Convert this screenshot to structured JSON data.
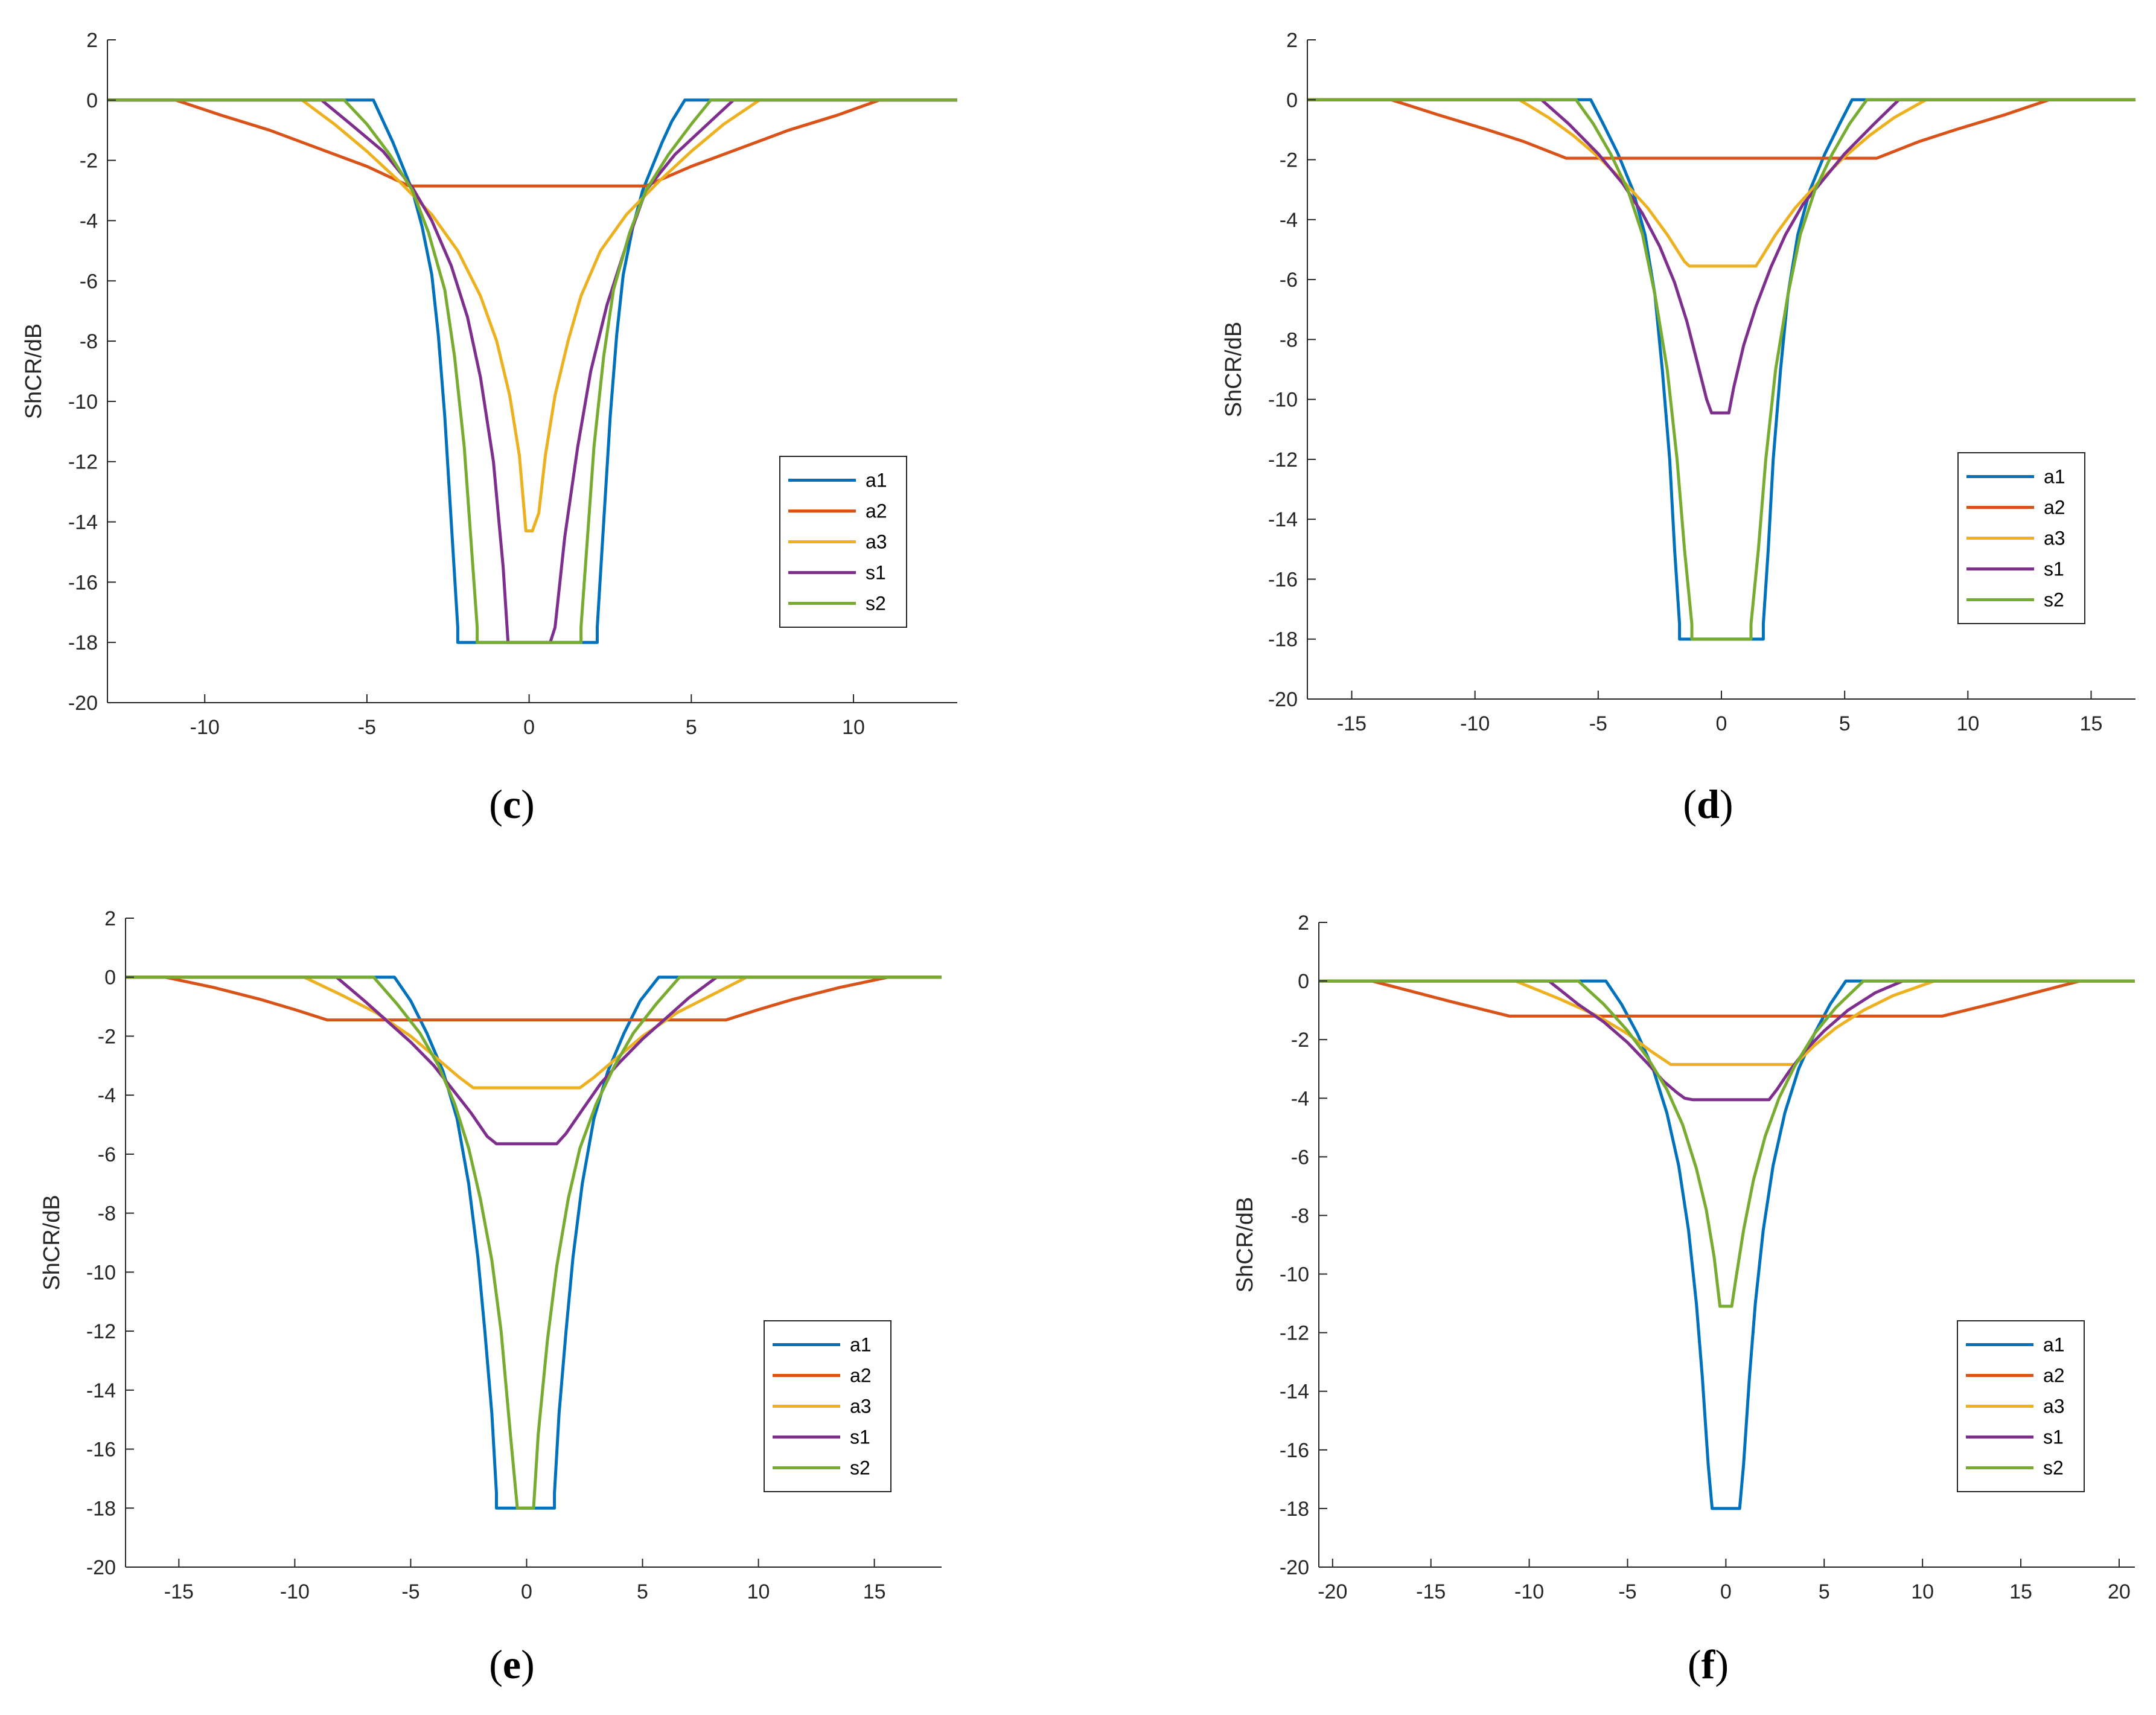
{
  "colors": {
    "a1": "#0072BD",
    "a2": "#D95319",
    "a3": "#EDB120",
    "s1": "#7E2F8E",
    "s2": "#77AC30",
    "axis": "#262626"
  },
  "chart_data": [
    {
      "id": "c",
      "type": "line",
      "caption_open": "(",
      "caption_letter": "c",
      "caption_close": ")",
      "ylabel": "ShCR/dB",
      "xlabel": "",
      "xlim": [
        -13,
        13.2
      ],
      "ylim": [
        -20,
        2
      ],
      "xticks": [
        -10,
        -5,
        0,
        5,
        10
      ],
      "yticks": [
        2,
        0,
        -2,
        -4,
        -6,
        -8,
        -10,
        -12,
        -14,
        -16,
        -18,
        -20
      ],
      "legend": [
        "a1",
        "a2",
        "a3",
        "s1",
        "s2"
      ],
      "legend_position": "lower-right",
      "series": [
        {
          "name": "a1",
          "x": [
            -13,
            -4.8,
            -4.5,
            -4.2,
            -3.9,
            -3.6,
            -3.3,
            -3.0,
            -2.8,
            -2.6,
            -2.4,
            -2.2,
            -2.2,
            2.1,
            2.1,
            2.3,
            2.5,
            2.7,
            2.9,
            3.2,
            3.5,
            3.8,
            4.1,
            4.4,
            4.8,
            13.2
          ],
          "y": [
            0,
            0,
            -0.7,
            -1.4,
            -2.2,
            -3.0,
            -4.2,
            -5.8,
            -7.8,
            -10.5,
            -14.0,
            -17.5,
            -18,
            -18,
            -17.5,
            -14.0,
            -10.5,
            -7.8,
            -5.8,
            -4.2,
            -3.0,
            -2.2,
            -1.4,
            -0.7,
            0,
            0
          ]
        },
        {
          "name": "a2",
          "x": [
            -13,
            -10.9,
            -9.5,
            -8.0,
            -6.5,
            -5.0,
            -3.7,
            3.6,
            5.0,
            6.5,
            8.0,
            9.5,
            10.8,
            13.2
          ],
          "y": [
            0,
            0,
            -0.5,
            -1.0,
            -1.6,
            -2.2,
            -2.85,
            -2.85,
            -2.2,
            -1.6,
            -1.0,
            -0.5,
            0,
            0
          ]
        },
        {
          "name": "a3",
          "x": [
            -13,
            -7.0,
            -6.0,
            -5.0,
            -4.0,
            -3.0,
            -2.2,
            -1.5,
            -1.0,
            -0.6,
            -0.3,
            -0.1,
            0.1,
            0.3,
            0.5,
            0.8,
            1.2,
            1.6,
            2.2,
            3.0,
            4.0,
            5.0,
            6.0,
            7.1,
            13.2
          ],
          "y": [
            0,
            0,
            -0.8,
            -1.7,
            -2.7,
            -3.8,
            -5.0,
            -6.5,
            -8.0,
            -9.8,
            -11.8,
            -14.3,
            -14.3,
            -13.7,
            -11.8,
            -9.8,
            -8.0,
            -6.5,
            -5.0,
            -3.8,
            -2.7,
            -1.7,
            -0.8,
            0,
            0
          ]
        },
        {
          "name": "s1",
          "x": [
            -13,
            -6.4,
            -5.5,
            -4.5,
            -3.6,
            -3.0,
            -2.4,
            -1.9,
            -1.5,
            -1.1,
            -0.8,
            -0.65,
            0.65,
            0.8,
            1.1,
            1.5,
            1.9,
            2.4,
            3.0,
            3.6,
            4.5,
            5.5,
            6.3,
            13.2
          ],
          "y": [
            0,
            0,
            -0.8,
            -1.7,
            -2.9,
            -4.0,
            -5.5,
            -7.2,
            -9.2,
            -12.0,
            -15.5,
            -18,
            -18,
            -17.5,
            -14.5,
            -11.5,
            -9.0,
            -6.8,
            -4.8,
            -3.0,
            -1.8,
            -0.8,
            0,
            0
          ]
        },
        {
          "name": "s2",
          "x": [
            -13,
            -5.7,
            -5.0,
            -4.3,
            -3.6,
            -3.1,
            -2.6,
            -2.3,
            -2.0,
            -1.8,
            -1.6,
            -1.6,
            1.6,
            1.6,
            1.8,
            2.0,
            2.3,
            2.6,
            3.1,
            3.6,
            4.3,
            5.0,
            5.6,
            13.2
          ],
          "y": [
            0,
            0,
            -0.8,
            -1.8,
            -3.0,
            -4.4,
            -6.3,
            -8.5,
            -11.5,
            -14.5,
            -17.5,
            -18,
            -18,
            -17.5,
            -14.5,
            -11.5,
            -8.5,
            -6.3,
            -4.4,
            -3.0,
            -1.8,
            -0.8,
            0,
            0
          ]
        }
      ]
    },
    {
      "id": "d",
      "type": "line",
      "caption_open": "(",
      "caption_letter": "d",
      "caption_close": ")",
      "ylabel": "ShCR/dB",
      "xlabel": "",
      "xlim": [
        -16.8,
        16.8
      ],
      "ylim": [
        -20,
        2
      ],
      "xticks": [
        -15,
        -10,
        -5,
        0,
        5,
        10,
        15
      ],
      "yticks": [
        2,
        0,
        -2,
        -4,
        -6,
        -8,
        -10,
        -12,
        -14,
        -16,
        -18,
        -20
      ],
      "legend": [
        "a1",
        "a2",
        "a3",
        "s1",
        "s2"
      ],
      "legend_position": "lower-right",
      "series": [
        {
          "name": "a1",
          "x": [
            -16.8,
            -5.3,
            -4.8,
            -4.2,
            -3.6,
            -3.1,
            -2.7,
            -2.4,
            -2.1,
            -1.9,
            -1.7,
            -1.7,
            1.7,
            1.7,
            1.9,
            2.1,
            2.4,
            2.7,
            3.1,
            3.6,
            4.2,
            4.8,
            5.3,
            16.8
          ],
          "y": [
            0,
            0,
            -0.8,
            -1.8,
            -3.0,
            -4.5,
            -6.5,
            -9.0,
            -12.0,
            -15.0,
            -17.5,
            -18,
            -18,
            -17.5,
            -15.0,
            -12.0,
            -9.0,
            -6.5,
            -4.5,
            -3.0,
            -1.8,
            -0.8,
            0,
            0
          ]
        },
        {
          "name": "a2",
          "x": [
            -16.8,
            -13.4,
            -11.5,
            -9.5,
            -8.0,
            -6.3,
            6.3,
            8.0,
            9.5,
            11.5,
            13.3,
            16.8
          ],
          "y": [
            0,
            0,
            -0.5,
            -1.0,
            -1.4,
            -1.95,
            -1.95,
            -1.4,
            -1.0,
            -0.5,
            0,
            0
          ]
        },
        {
          "name": "a3",
          "x": [
            -16.8,
            -8.2,
            -7.0,
            -6.0,
            -5.0,
            -4.0,
            -3.0,
            -2.2,
            -1.5,
            -1.3,
            1.4,
            1.6,
            2.2,
            3.0,
            4.0,
            5.0,
            6.0,
            7.0,
            8.3,
            16.8
          ],
          "y": [
            0,
            0,
            -0.6,
            -1.2,
            -1.9,
            -2.7,
            -3.6,
            -4.5,
            -5.4,
            -5.55,
            -5.55,
            -5.3,
            -4.5,
            -3.6,
            -2.7,
            -1.9,
            -1.2,
            -0.6,
            0,
            0
          ]
        },
        {
          "name": "s1",
          "x": [
            -16.8,
            -7.3,
            -6.2,
            -5.0,
            -4.0,
            -3.2,
            -2.5,
            -1.9,
            -1.4,
            -1.0,
            -0.6,
            -0.4,
            0.3,
            0.5,
            0.9,
            1.4,
            2.0,
            2.6,
            3.3,
            4.0,
            5.0,
            6.2,
            7.2,
            16.8
          ],
          "y": [
            0,
            0,
            -0.8,
            -1.8,
            -2.8,
            -3.8,
            -4.9,
            -6.1,
            -7.4,
            -8.7,
            -10.0,
            -10.45,
            -10.45,
            -9.6,
            -8.2,
            -6.9,
            -5.6,
            -4.5,
            -3.5,
            -2.8,
            -1.8,
            -0.8,
            0,
            0
          ]
        },
        {
          "name": "s2",
          "x": [
            -16.8,
            -5.9,
            -5.2,
            -4.5,
            -3.8,
            -3.2,
            -2.7,
            -2.2,
            -1.8,
            -1.5,
            -1.2,
            -1.2,
            1.2,
            1.2,
            1.5,
            1.8,
            2.2,
            2.7,
            3.2,
            3.8,
            4.5,
            5.2,
            5.9,
            16.8
          ],
          "y": [
            0,
            0,
            -0.8,
            -1.8,
            -3.0,
            -4.5,
            -6.5,
            -9.0,
            -12.0,
            -15.0,
            -17.5,
            -18,
            -18,
            -17.5,
            -15.0,
            -12.0,
            -9.0,
            -6.5,
            -4.5,
            -3.0,
            -1.8,
            -0.8,
            0,
            0
          ]
        }
      ]
    },
    {
      "id": "e",
      "type": "line",
      "caption_open": "(",
      "caption_letter": "e",
      "caption_close": ")",
      "ylabel": "ShCR/dB",
      "xlabel": "",
      "xlim": [
        -17.3,
        17.9
      ],
      "ylim": [
        -20,
        2
      ],
      "xticks": [
        -15,
        -10,
        -5,
        0,
        5,
        10,
        15
      ],
      "yticks": [
        2,
        0,
        -2,
        -4,
        -6,
        -8,
        -10,
        -12,
        -14,
        -16,
        -18,
        -20
      ],
      "legend": [
        "a1",
        "a2",
        "a3",
        "s1",
        "s2"
      ],
      "legend_position": "lower-right",
      "series": [
        {
          "name": "a1",
          "x": [
            -17.3,
            -5.7,
            -5.0,
            -4.3,
            -3.6,
            -3.0,
            -2.5,
            -2.1,
            -1.8,
            -1.5,
            -1.3,
            -1.3,
            1.2,
            1.2,
            1.4,
            1.7,
            2.0,
            2.4,
            2.9,
            3.5,
            4.2,
            4.9,
            5.7,
            17.9
          ],
          "y": [
            0,
            0,
            -0.8,
            -1.9,
            -3.2,
            -4.8,
            -7.0,
            -9.5,
            -12.0,
            -14.8,
            -17.5,
            -18,
            -18,
            -17.5,
            -14.8,
            -12.0,
            -9.5,
            -7.0,
            -4.8,
            -3.2,
            -1.9,
            -0.8,
            0,
            0
          ]
        },
        {
          "name": "a2",
          "x": [
            -17.3,
            -15.6,
            -13.5,
            -11.5,
            -10.0,
            -8.6,
            8.6,
            10.0,
            11.5,
            13.5,
            15.6,
            17.9
          ],
          "y": [
            0,
            0,
            -0.35,
            -0.75,
            -1.1,
            -1.45,
            -1.45,
            -1.1,
            -0.75,
            -0.35,
            0,
            0
          ]
        },
        {
          "name": "a3",
          "x": [
            -17.3,
            -9.6,
            -8.0,
            -6.5,
            -5.0,
            -3.8,
            -2.9,
            -2.3,
            2.3,
            2.9,
            3.8,
            5.0,
            6.5,
            8.0,
            9.5,
            17.9
          ],
          "y": [
            0,
            0,
            -0.6,
            -1.2,
            -2.0,
            -2.8,
            -3.4,
            -3.75,
            -3.75,
            -3.4,
            -2.8,
            -2.0,
            -1.2,
            -0.6,
            0,
            0
          ]
        },
        {
          "name": "s1",
          "x": [
            -17.3,
            -8.2,
            -7.0,
            -6.0,
            -5.0,
            -4.0,
            -3.2,
            -2.4,
            -1.7,
            -1.3,
            1.3,
            1.7,
            2.4,
            3.2,
            4.0,
            5.0,
            6.0,
            7.0,
            8.2,
            17.9
          ],
          "y": [
            0,
            0,
            -0.8,
            -1.5,
            -2.2,
            -3.0,
            -3.8,
            -4.6,
            -5.4,
            -5.65,
            -5.65,
            -5.3,
            -4.5,
            -3.6,
            -2.9,
            -2.1,
            -1.4,
            -0.7,
            0,
            0
          ]
        },
        {
          "name": "s2",
          "x": [
            -17.3,
            -6.6,
            -5.6,
            -4.6,
            -3.8,
            -3.1,
            -2.5,
            -2.0,
            -1.5,
            -1.1,
            -0.7,
            -0.4,
            0.3,
            0.5,
            0.9,
            1.3,
            1.8,
            2.3,
            3.0,
            3.8,
            4.6,
            5.6,
            6.6,
            17.9
          ],
          "y": [
            0,
            0,
            -0.9,
            -1.9,
            -3.0,
            -4.3,
            -5.8,
            -7.5,
            -9.6,
            -12.0,
            -15.5,
            -18,
            -18,
            -15.5,
            -12.3,
            -9.8,
            -7.5,
            -5.8,
            -4.3,
            -3.0,
            -1.9,
            -0.9,
            0,
            0
          ]
        }
      ]
    },
    {
      "id": "f",
      "type": "line",
      "caption_open": "(",
      "caption_letter": "f",
      "caption_close": ")",
      "ylabel": "ShCR/dB",
      "xlabel": "",
      "xlim": [
        -20.7,
        20.8
      ],
      "ylim": [
        -20,
        2
      ],
      "xticks": [
        -20,
        -15,
        -10,
        -5,
        0,
        5,
        10,
        15,
        20
      ],
      "yticks": [
        2,
        0,
        -2,
        -4,
        -6,
        -8,
        -10,
        -12,
        -14,
        -16,
        -18,
        -20
      ],
      "legend": [
        "a1",
        "a2",
        "a3",
        "s1",
        "s2"
      ],
      "legend_position": "lower-right",
      "series": [
        {
          "name": "a1",
          "x": [
            -20.7,
            -6.1,
            -5.3,
            -4.5,
            -3.7,
            -3.0,
            -2.4,
            -1.9,
            -1.5,
            -1.2,
            -0.9,
            -0.7,
            0.7,
            0.9,
            1.2,
            1.5,
            1.9,
            2.4,
            3.0,
            3.7,
            4.5,
            5.3,
            6.1,
            20.8
          ],
          "y": [
            0,
            0,
            -0.8,
            -1.8,
            -3.0,
            -4.5,
            -6.3,
            -8.5,
            -11.0,
            -13.5,
            -16.5,
            -18,
            -18,
            -16.5,
            -13.5,
            -11.0,
            -8.5,
            -6.3,
            -4.5,
            -3.0,
            -1.8,
            -0.8,
            0,
            0
          ]
        },
        {
          "name": "a2",
          "x": [
            -20.7,
            -18.0,
            -16.0,
            -14.0,
            -12.5,
            -11.0,
            11.0,
            12.5,
            14.0,
            16.0,
            18.0,
            20.8
          ],
          "y": [
            0,
            0,
            -0.35,
            -0.7,
            -0.95,
            -1.2,
            -1.2,
            -0.95,
            -0.7,
            -0.35,
            0,
            0
          ]
        },
        {
          "name": "a3",
          "x": [
            -20.7,
            -10.7,
            -8.5,
            -6.5,
            -5.0,
            -3.8,
            -2.8,
            3.5,
            4.5,
            5.6,
            7.0,
            8.5,
            10.6,
            20.8
          ],
          "y": [
            0,
            0,
            -0.6,
            -1.2,
            -1.8,
            -2.4,
            -2.85,
            -2.85,
            -2.2,
            -1.6,
            -1.0,
            -0.5,
            0,
            0
          ]
        },
        {
          "name": "s1",
          "x": [
            -20.7,
            -9.0,
            -7.5,
            -6.2,
            -5.0,
            -4.0,
            -3.2,
            -2.5,
            -2.1,
            -1.7,
            2.2,
            2.6,
            3.2,
            4.0,
            5.0,
            6.2,
            7.6,
            9.0,
            20.8
          ],
          "y": [
            0,
            0,
            -0.8,
            -1.4,
            -2.1,
            -2.8,
            -3.4,
            -3.8,
            -4.0,
            -4.05,
            -4.05,
            -3.7,
            -3.1,
            -2.4,
            -1.7,
            -1.0,
            -0.4,
            0,
            0
          ]
        },
        {
          "name": "s2",
          "x": [
            -20.7,
            -7.5,
            -6.2,
            -5.0,
            -4.0,
            -3.0,
            -2.2,
            -1.5,
            -1.0,
            -0.6,
            -0.3,
            0.3,
            0.5,
            0.9,
            1.4,
            2.0,
            2.7,
            3.5,
            4.5,
            5.6,
            7.0,
            20.8
          ],
          "y": [
            0,
            0,
            -0.8,
            -1.7,
            -2.6,
            -3.7,
            -4.9,
            -6.4,
            -7.8,
            -9.4,
            -11.1,
            -11.1,
            -10.2,
            -8.5,
            -6.8,
            -5.3,
            -4.0,
            -2.9,
            -1.8,
            -0.9,
            0,
            0
          ]
        }
      ]
    }
  ]
}
